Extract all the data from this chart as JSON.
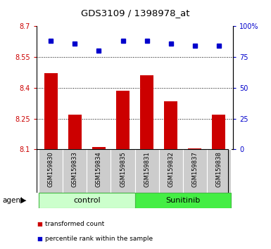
{
  "title": "GDS3109 / 1398978_at",
  "samples": [
    "GSM159830",
    "GSM159833",
    "GSM159834",
    "GSM159835",
    "GSM159831",
    "GSM159832",
    "GSM159837",
    "GSM159838"
  ],
  "bar_values": [
    8.47,
    8.27,
    8.11,
    8.385,
    8.46,
    8.335,
    8.105,
    8.27
  ],
  "percentile_values": [
    88,
    86,
    80,
    88,
    88,
    86,
    84,
    84
  ],
  "ylim_left": [
    8.1,
    8.7
  ],
  "ylim_right": [
    0,
    100
  ],
  "yticks_left": [
    8.1,
    8.25,
    8.4,
    8.55,
    8.7
  ],
  "yticks_right": [
    0,
    25,
    50,
    75,
    100
  ],
  "ytick_labels_left": [
    "8.1",
    "8.25",
    "8.4",
    "8.55",
    "8.7"
  ],
  "ytick_labels_right": [
    "0",
    "25",
    "50",
    "75",
    "100%"
  ],
  "bar_color": "#cc0000",
  "dot_color": "#0000cc",
  "groups": [
    {
      "label": "control",
      "n": 4,
      "color": "#ccffcc",
      "edge_color": "#44bb44"
    },
    {
      "label": "Sunitinib",
      "n": 4,
      "color": "#44ee44",
      "edge_color": "#44bb44"
    }
  ],
  "legend_bar_label": "transformed count",
  "legend_dot_label": "percentile rank within the sample",
  "background_color": "#ffffff",
  "tick_label_color_left": "#cc0000",
  "tick_label_color_right": "#0000cc",
  "label_box_color": "#cccccc",
  "bar_width": 0.55
}
